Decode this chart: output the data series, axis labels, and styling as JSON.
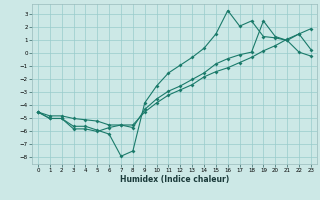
{
  "xlabel": "Humidex (Indice chaleur)",
  "bg_color": "#cce8e6",
  "grid_color": "#99cccc",
  "line_color": "#1a7a6a",
  "xlim": [
    -0.5,
    23.5
  ],
  "ylim": [
    -8.5,
    3.8
  ],
  "xticks": [
    0,
    1,
    2,
    3,
    4,
    5,
    6,
    7,
    8,
    9,
    10,
    11,
    12,
    13,
    14,
    15,
    16,
    17,
    18,
    19,
    20,
    21,
    22,
    23
  ],
  "yticks": [
    -8,
    -7,
    -6,
    -5,
    -4,
    -3,
    -2,
    -1,
    0,
    1,
    2,
    3
  ],
  "series1_x": [
    0,
    1,
    2,
    3,
    4,
    5,
    6,
    7,
    8,
    9,
    10,
    11,
    12,
    13,
    14,
    15,
    16,
    17,
    18,
    19,
    20,
    21,
    22,
    23
  ],
  "series1_y": [
    -4.5,
    -5.0,
    -5.0,
    -5.6,
    -5.6,
    -5.9,
    -6.2,
    -7.9,
    -7.5,
    -3.8,
    -2.5,
    -1.5,
    -0.9,
    -0.3,
    0.4,
    1.5,
    3.3,
    2.1,
    2.5,
    1.3,
    1.2,
    1.0,
    0.1,
    -0.2
  ],
  "series2_x": [
    0,
    1,
    2,
    3,
    4,
    5,
    6,
    7,
    8,
    9,
    10,
    11,
    12,
    13,
    14,
    15,
    16,
    17,
    18,
    19,
    20,
    21,
    22,
    23
  ],
  "series2_y": [
    -4.5,
    -4.8,
    -4.8,
    -5.0,
    -5.1,
    -5.2,
    -5.5,
    -5.5,
    -5.7,
    -4.3,
    -3.5,
    -2.9,
    -2.5,
    -2.0,
    -1.5,
    -0.8,
    -0.4,
    -0.1,
    0.1,
    2.5,
    1.3,
    1.0,
    1.5,
    0.3
  ],
  "series3_x": [
    0,
    1,
    2,
    3,
    4,
    5,
    6,
    7,
    8,
    9,
    10,
    11,
    12,
    13,
    14,
    15,
    16,
    17,
    18,
    19,
    20,
    21,
    22,
    23
  ],
  "series3_y": [
    -4.5,
    -5.0,
    -5.0,
    -5.8,
    -5.8,
    -6.0,
    -5.7,
    -5.5,
    -5.5,
    -4.5,
    -3.8,
    -3.2,
    -2.8,
    -2.4,
    -1.8,
    -1.4,
    -1.1,
    -0.7,
    -0.3,
    0.2,
    0.6,
    1.1,
    1.5,
    1.9
  ]
}
